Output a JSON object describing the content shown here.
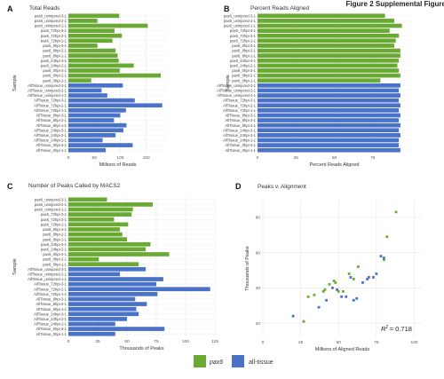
{
  "figure_title": "Figure 2 Supplemental Figure",
  "colors": {
    "pax6": "#6aaa34",
    "all_tissue": "#4a72c9",
    "grid": "#e6e6e6",
    "panel_bg": "#ffffff",
    "text": "#333333"
  },
  "legend": {
    "items": [
      {
        "label": "pax6",
        "color": "#6aaa34"
      },
      {
        "label": "all-tissue",
        "color": "#4a72c9"
      }
    ]
  },
  "chart_data": [
    {
      "panel": "A",
      "type": "bar",
      "orientation": "horizontal",
      "title": "Total Reads",
      "xlabel": "Millions of Reads",
      "ylabel": "Sample",
      "xlim": [
        0,
        190
      ],
      "xticks": [
        0,
        50,
        100,
        150
      ],
      "categories": [
        "pax6_uninjured-3-1",
        "pax6_uninjured-2-1",
        "pax6_uninjured-1-1",
        "pax6_72hpi-3-1",
        "pax6_72hpi-2-1",
        "pax6_72hpi-1-1",
        "pax6_8hpi-3-1",
        "pax6_8hpi-2-1",
        "pax6_8hpi-1-1",
        "pax6_24hpi-3-1",
        "pax6_24hpi-2-1",
        "pax6_0hpi-3-1",
        "pax6_0hpi-2-1",
        "pax6_0hpi-1-1",
        "AllTissue_uninjured-3-1",
        "AllTissue_uninjured-2-1",
        "AllTissue_uninjured-1-1",
        "AllTissue_72hpi-3-1",
        "AllTissue_72hpi-2-1",
        "AllTissue_72hpi-1-1",
        "AllTissue_8hpi-3-1",
        "AllTissue_8hpi-2-1",
        "AllTissue_8hpi-1-1",
        "AllTissue_24hpi-3-1",
        "AllTissue_24hpi-2-1",
        "AllTissue_24hpi-1-1",
        "AllTissue_0hpi-3-1",
        "AllTissue_0hpi-1-1"
      ],
      "groups": [
        "pax6",
        "pax6",
        "pax6",
        "pax6",
        "pax6",
        "pax6",
        "pax6",
        "pax6",
        "pax6",
        "pax6",
        "pax6",
        "pax6",
        "pax6",
        "pax6",
        "all_tissue",
        "all_tissue",
        "all_tissue",
        "all_tissue",
        "all_tissue",
        "all_tissue",
        "all_tissue",
        "all_tissue",
        "all_tissue",
        "all_tissue",
        "all_tissue",
        "all_tissue",
        "all_tissue",
        "all_tissue"
      ],
      "values": [
        98,
        56,
        153,
        89,
        103,
        85,
        56,
        91,
        95,
        97,
        126,
        99,
        178,
        44,
        105,
        64,
        75,
        128,
        181,
        111,
        100,
        88,
        112,
        106,
        91,
        66,
        124,
        72
      ]
    },
    {
      "panel": "B",
      "type": "bar",
      "orientation": "horizontal",
      "title": "Percent Reads Aligned",
      "xlabel": "Percent Reads Aligned",
      "ylabel": "Sample",
      "xlim": [
        0,
        100
      ],
      "xticks": [
        0,
        25,
        50,
        75
      ],
      "categories": [
        "pax6_uninjured-3-1",
        "pax6_uninjured-2-1",
        "pax6_uninjured-1-1",
        "pax6_72hpi-3-1",
        "pax6_72hpi-2-1",
        "pax6_72hpi-1-1",
        "pax6_8hpi-3-1",
        "pax6_8hpi-2-1",
        "pax6_8hpi-1-1",
        "pax6_24hpi-3-1",
        "pax6_24hpi-2-1",
        "pax6_0hpi-3-1",
        "pax6_0hpi-2-1",
        "pax6_0hpi-1-1",
        "AllTissue_uninjured-3-1",
        "AllTissue_uninjured-2-1",
        "AllTissue_uninjured-1-1",
        "AllTissue_72hpi-3-1",
        "AllTissue_72hpi-2-1",
        "AllTissue_72hpi-1-1",
        "AllTissue_8hpi-3-1",
        "AllTissue_8hpi-2-1",
        "AllTissue_8hpi-1-1",
        "AllTissue_24hpi-3-1",
        "AllTissue_24hpi-2-1",
        "AllTissue_24hpi-1-1",
        "AllTissue_0hpi-3-1",
        "AllTissue_0hpi-1-1"
      ],
      "groups": [
        "pax6",
        "pax6",
        "pax6",
        "pax6",
        "pax6",
        "pax6",
        "pax6",
        "pax6",
        "pax6",
        "pax6",
        "pax6",
        "pax6",
        "pax6",
        "pax6",
        "all_tissue",
        "all_tissue",
        "all_tissue",
        "all_tissue",
        "all_tissue",
        "all_tissue",
        "all_tissue",
        "all_tissue",
        "all_tissue",
        "all_tissue",
        "all_tissue",
        "all_tissue",
        "all_tissue",
        "all_tissue"
      ],
      "values": [
        83,
        89,
        94,
        86,
        92,
        90,
        89,
        93,
        93,
        92,
        91,
        92,
        93,
        80,
        93,
        92,
        93,
        92,
        93,
        92,
        93,
        92,
        93,
        92,
        93,
        92,
        92,
        93
      ]
    },
    {
      "panel": "C",
      "type": "bar",
      "orientation": "horizontal",
      "title": "Number of Peaks Called by MACS2",
      "xlabel": "Thousands of Peaks",
      "ylabel": "Sample",
      "xlim": [
        0,
        125
      ],
      "xticks": [
        0,
        25,
        50,
        75,
        100,
        125
      ],
      "categories": [
        "pax6_uninjured-3-1",
        "pax6_uninjured-2-1",
        "pax6_uninjured-1-1",
        "pax6_72hpi-3-1",
        "pax6_72hpi-2-1",
        "pax6_72hpi-1-1",
        "pax6_8hpi-3-1",
        "pax6_8hpi-2-1",
        "pax6_8hpi-1-1",
        "pax6_24hpi-3-1",
        "pax6_24hpi-2-1",
        "pax6_0hpi-3-1",
        "pax6_0hpi-2-1",
        "pax6_0hpi-1-1",
        "AllTissue_uninjured-3-1",
        "AllTissue_uninjured-2-1",
        "AllTissue_uninjured-1-1",
        "AllTissue_72hpi-3-1",
        "AllTissue_72hpi-2-1",
        "AllTissue_72hpi-1-1",
        "AllTissue_8hpi-3-1",
        "AllTissue_8hpi-2-1",
        "AllTissue_8hpi-1-1",
        "AllTissue_24hpi-3-1",
        "AllTissue_24hpi-2-1",
        "AllTissue_24hpi-1-1",
        "AllTissue_0hpi-3-1",
        "AllTissue_0hpi-1-1"
      ],
      "groups": [
        "pax6",
        "pax6",
        "pax6",
        "pax6",
        "pax6",
        "pax6",
        "pax6",
        "pax6",
        "pax6",
        "pax6",
        "pax6",
        "pax6",
        "pax6",
        "pax6",
        "all_tissue",
        "all_tissue",
        "all_tissue",
        "all_tissue",
        "all_tissue",
        "all_tissue",
        "all_tissue",
        "all_tissue",
        "all_tissue",
        "all_tissue",
        "all_tissue",
        "all_tissue",
        "all_tissue",
        "all_tissue"
      ],
      "values": [
        33,
        72,
        55,
        54,
        39,
        51,
        44,
        46,
        50,
        70,
        66,
        86,
        26,
        60,
        66,
        44,
        81,
        75,
        121,
        76,
        57,
        67,
        58,
        60,
        50,
        40,
        82,
        40
      ]
    },
    {
      "panel": "D",
      "type": "scatter",
      "title": "Peaks v. Alignment",
      "xlabel": "Millions of Aligned Reads",
      "ylabel": "Thousands of Peaks",
      "xlim": [
        0,
        105
      ],
      "ylim": [
        12,
        90
      ],
      "xticks": [
        0,
        25,
        50,
        75,
        100
      ],
      "yticks": [
        20,
        40,
        60,
        80
      ],
      "annotation": {
        "r2_label": "R",
        "r2_superscript": "2",
        "r2_value": "= 0.718"
      },
      "series": [
        {
          "name": "pax6",
          "color": "#6aaa34",
          "x": [
            27,
            30,
            34,
            40,
            41,
            44,
            47,
            48,
            50,
            53,
            57,
            60,
            63,
            80,
            82,
            88
          ],
          "y": [
            21,
            35,
            36,
            38,
            39,
            42,
            44,
            43,
            38,
            38,
            48,
            45,
            52,
            56,
            69,
            83
          ]
        },
        {
          "name": "all-tissue",
          "color": "#4a72c9",
          "x": [
            20,
            37,
            42,
            46,
            49,
            52,
            55,
            58,
            60,
            62,
            66,
            69,
            70,
            73,
            75,
            78,
            80
          ],
          "y": [
            24,
            29,
            33,
            40,
            39,
            35,
            35,
            46,
            33,
            34,
            43,
            45,
            46,
            46,
            48,
            58,
            57
          ]
        }
      ]
    }
  ]
}
